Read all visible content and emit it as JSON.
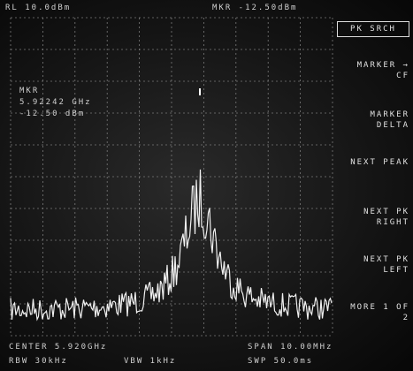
{
  "header": {
    "left": "RL 10.0dBm",
    "right": "MKR -12.50dBm"
  },
  "marker": {
    "label": "MKR",
    "frequency": "5.92242 GHz",
    "level": "-12.50 dBm"
  },
  "footer": {
    "center": "CENTER 5.920GHz",
    "span": "SPAN 10.00MHz",
    "rbw": "RBW 30kHz",
    "vbw": "VBW 1kHz",
    "sweep": "SWP 50.0ms"
  },
  "softkeys": [
    {
      "label": "PK SRCH"
    },
    {
      "label": "MARKER → CF"
    },
    {
      "label": "MARKER DELTA"
    },
    {
      "label": "NEXT PEAK"
    },
    {
      "label": "NEXT PK RIGHT"
    },
    {
      "label": "NEXT PK LEFT"
    },
    {
      "label": "MORE 1 OF 2"
    }
  ]
}
